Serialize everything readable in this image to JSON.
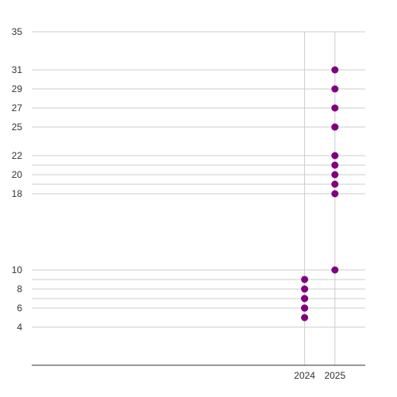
{
  "chart_data": {
    "type": "scatter",
    "title": "",
    "xlabel": "",
    "ylabel": "",
    "x_ticks": [
      2024,
      2025
    ],
    "xlim": [
      2015.0,
      2026.0
    ],
    "y_ticks": [
      4,
      6,
      7,
      8,
      9,
      10,
      18,
      19,
      20,
      21,
      22,
      25,
      27,
      29,
      31,
      35
    ],
    "y_tick_labels": [
      "4",
      "6",
      "",
      "8",
      "",
      "10",
      "18",
      "",
      "20",
      "",
      "22",
      "25",
      "27",
      "29",
      "31",
      "35"
    ],
    "ylim": [
      0,
      35
    ],
    "grid": true,
    "legend": "none",
    "marker_color": "#800080",
    "points": [
      {
        "x": 2024,
        "y": 5
      },
      {
        "x": 2024,
        "y": 6
      },
      {
        "x": 2024,
        "y": 6
      },
      {
        "x": 2024,
        "y": 7
      },
      {
        "x": 2024,
        "y": 7
      },
      {
        "x": 2024,
        "y": 8
      },
      {
        "x": 2024,
        "y": 9
      },
      {
        "x": 2025,
        "y": 10
      },
      {
        "x": 2025,
        "y": 18
      },
      {
        "x": 2025,
        "y": 19
      },
      {
        "x": 2025,
        "y": 20
      },
      {
        "x": 2025,
        "y": 21
      },
      {
        "x": 2025,
        "y": 22
      },
      {
        "x": 2025,
        "y": 25
      },
      {
        "x": 2025,
        "y": 25
      },
      {
        "x": 2025,
        "y": 27
      },
      {
        "x": 2025,
        "y": 29
      },
      {
        "x": 2025,
        "y": 31
      }
    ]
  }
}
